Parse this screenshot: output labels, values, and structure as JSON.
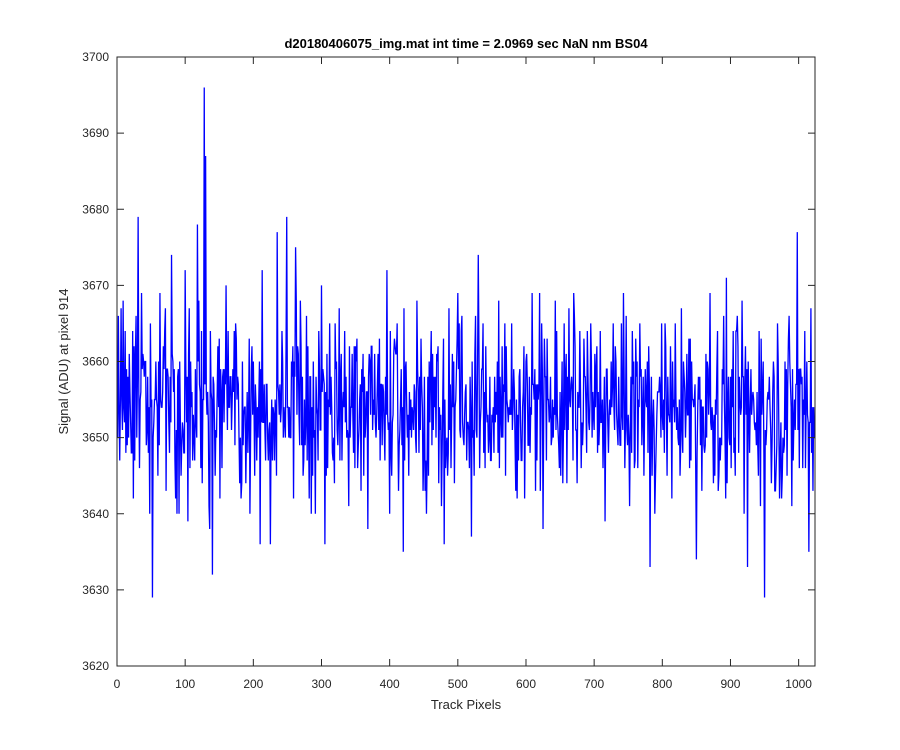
{
  "chart_data": {
    "type": "line",
    "title": "d20180406075_img.mat int time = 2.0969 sec  NaN nm BS04",
    "xlabel": "Track Pixels",
    "ylabel": "Signal (ADU) at pixel 914",
    "xlim": [
      0,
      1024
    ],
    "ylim": [
      3620,
      3700
    ],
    "x_ticks": [
      0,
      100,
      200,
      300,
      400,
      500,
      600,
      700,
      800,
      900,
      1000
    ],
    "y_ticks": [
      3620,
      3630,
      3640,
      3650,
      3660,
      3670,
      3680,
      3690,
      3700
    ],
    "grid": false,
    "series": [
      {
        "color": "#0000ff",
        "x_start": 1,
        "x_step": 1,
        "num_points": 1024,
        "baseline": 3654,
        "noise_std": 6,
        "highlighted_points": [
          {
            "x": 2,
            "y": 3666
          },
          {
            "x": 6,
            "y": 3667
          },
          {
            "x": 12,
            "y": 3664
          },
          {
            "x": 21,
            "y": 3648
          },
          {
            "x": 26,
            "y": 3647
          },
          {
            "x": 31,
            "y": 3679
          },
          {
            "x": 36,
            "y": 3669
          },
          {
            "x": 42,
            "y": 3660
          },
          {
            "x": 48,
            "y": 3640
          },
          {
            "x": 52,
            "y": 3629
          },
          {
            "x": 57,
            "y": 3660
          },
          {
            "x": 63,
            "y": 3669
          },
          {
            "x": 68,
            "y": 3662
          },
          {
            "x": 72,
            "y": 3643
          },
          {
            "x": 80,
            "y": 3674
          },
          {
            "x": 86,
            "y": 3642
          },
          {
            "x": 100,
            "y": 3672
          },
          {
            "x": 108,
            "y": 3660
          },
          {
            "x": 118,
            "y": 3678
          },
          {
            "x": 125,
            "y": 3644
          },
          {
            "x": 128,
            "y": 3696
          },
          {
            "x": 130,
            "y": 3687
          },
          {
            "x": 136,
            "y": 3638
          },
          {
            "x": 140,
            "y": 3632
          },
          {
            "x": 150,
            "y": 3663
          },
          {
            "x": 160,
            "y": 3670
          },
          {
            "x": 172,
            "y": 3664
          },
          {
            "x": 182,
            "y": 3642
          },
          {
            "x": 198,
            "y": 3662
          },
          {
            "x": 210,
            "y": 3636
          },
          {
            "x": 213,
            "y": 3672
          },
          {
            "x": 225,
            "y": 3636
          },
          {
            "x": 235,
            "y": 3677
          },
          {
            "x": 249,
            "y": 3679
          },
          {
            "x": 255,
            "y": 3650
          },
          {
            "x": 262,
            "y": 3675
          },
          {
            "x": 270,
            "y": 3662
          },
          {
            "x": 285,
            "y": 3640
          },
          {
            "x": 300,
            "y": 3670
          },
          {
            "x": 305,
            "y": 3636
          },
          {
            "x": 320,
            "y": 3665
          },
          {
            "x": 340,
            "y": 3641
          },
          {
            "x": 352,
            "y": 3663
          },
          {
            "x": 368,
            "y": 3638
          },
          {
            "x": 385,
            "y": 3663
          },
          {
            "x": 396,
            "y": 3672
          },
          {
            "x": 412,
            "y": 3652
          },
          {
            "x": 420,
            "y": 3635
          },
          {
            "x": 440,
            "y": 3668
          },
          {
            "x": 470,
            "y": 3660
          },
          {
            "x": 480,
            "y": 3636
          },
          {
            "x": 500,
            "y": 3669
          },
          {
            "x": 520,
            "y": 3637
          },
          {
            "x": 530,
            "y": 3674
          },
          {
            "x": 560,
            "y": 3668
          },
          {
            "x": 570,
            "y": 3645
          },
          {
            "x": 582,
            "y": 3659
          },
          {
            "x": 600,
            "y": 3660
          },
          {
            "x": 620,
            "y": 3669
          },
          {
            "x": 645,
            "y": 3664
          },
          {
            "x": 670,
            "y": 3669
          },
          {
            "x": 690,
            "y": 3664
          },
          {
            "x": 705,
            "y": 3648
          },
          {
            "x": 731,
            "y": 3662
          },
          {
            "x": 745,
            "y": 3646
          },
          {
            "x": 767,
            "y": 3665
          },
          {
            "x": 782,
            "y": 3633
          },
          {
            "x": 812,
            "y": 3662
          },
          {
            "x": 830,
            "y": 3648
          },
          {
            "x": 850,
            "y": 3634
          },
          {
            "x": 870,
            "y": 3669
          },
          {
            "x": 898,
            "y": 3650
          },
          {
            "x": 925,
            "y": 3633
          },
          {
            "x": 942,
            "y": 3664
          },
          {
            "x": 950,
            "y": 3629
          },
          {
            "x": 965,
            "y": 3643
          },
          {
            "x": 990,
            "y": 3641
          },
          {
            "x": 998,
            "y": 3677
          },
          {
            "x": 1005,
            "y": 3658
          },
          {
            "x": 1012,
            "y": 3660
          },
          {
            "x": 1015,
            "y": 3635
          },
          {
            "x": 1018,
            "y": 3667
          },
          {
            "x": 1021,
            "y": 3643
          },
          {
            "x": 1024,
            "y": 3650
          }
        ]
      }
    ]
  }
}
